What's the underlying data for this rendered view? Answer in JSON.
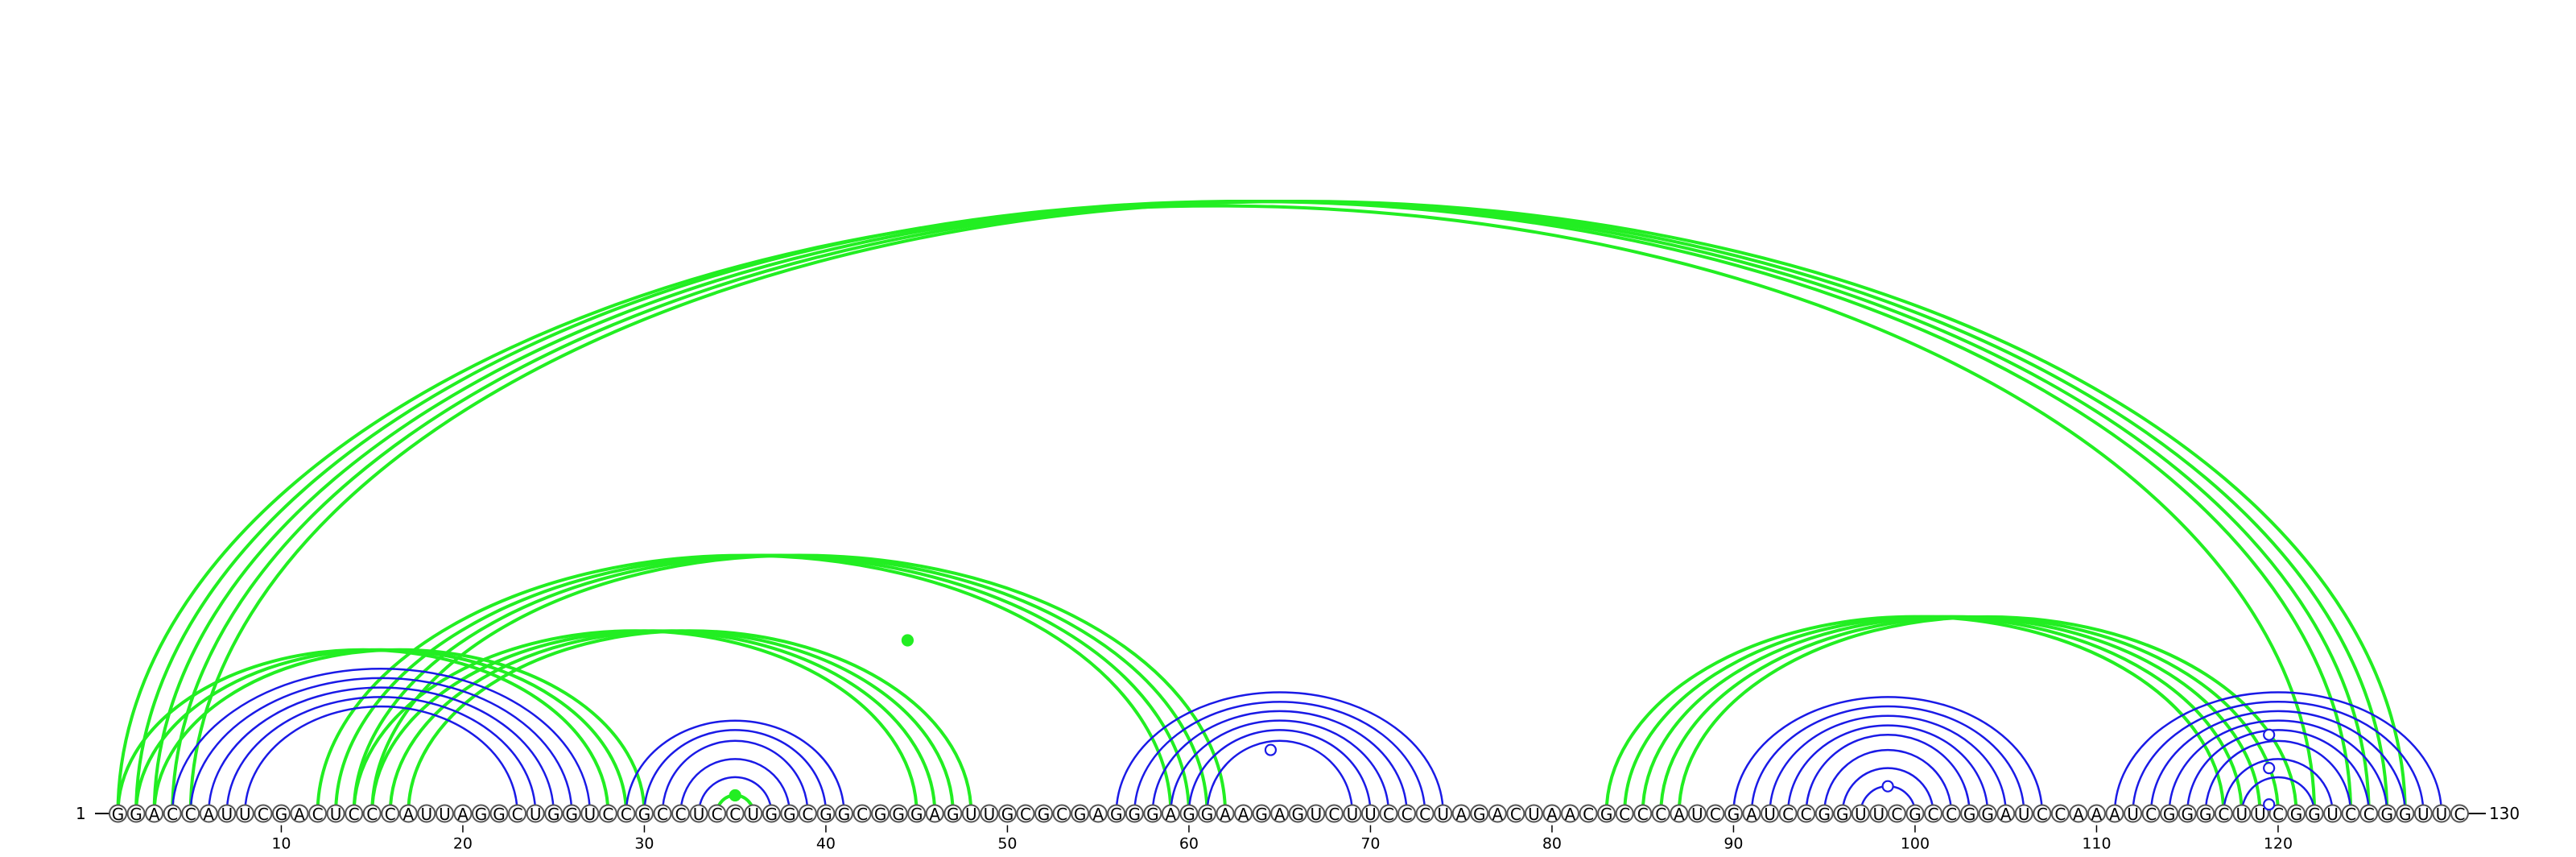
{
  "sequence": "GGACCAUUCGACUCCCAUUAGGCUGGUCCGCCUCCUGGCGGCGGGAGUUGCGCGAGGGAGGAAGAGUCUUCCCUAGACUAACGCCCAUCGAUCCGGUUCGCCGGAUCCAAAUCGGGCUUCGGUCCGGUUC",
  "start_label": "1",
  "end_label": "130",
  "tick_labels": [
    "10",
    "20",
    "30",
    "40",
    "50",
    "60",
    "70",
    "80",
    "90",
    "100",
    "110",
    "120"
  ],
  "colors": {
    "green": "#22ee22",
    "blue": "#1a1ae6",
    "outline": "#555555"
  },
  "arc_groups": [
    {
      "color": "green",
      "pairs": [
        [
          1,
          122
        ],
        [
          2,
          124
        ],
        [
          3,
          125
        ],
        [
          4,
          126
        ],
        [
          5,
          127
        ]
      ]
    },
    {
      "color": "green",
      "pairs": [
        [
          1,
          28
        ],
        [
          2,
          29
        ],
        [
          3,
          30
        ]
      ]
    },
    {
      "color": "green",
      "pairs": [
        [
          12,
          59
        ],
        [
          13,
          60
        ],
        [
          14,
          61
        ],
        [
          15,
          62
        ]
      ]
    },
    {
      "color": "green",
      "pairs": [
        [
          14,
          45
        ],
        [
          15,
          46
        ],
        [
          16,
          47
        ],
        [
          17,
          48
        ]
      ]
    },
    {
      "color": "green",
      "pairs": [
        [
          83,
          117
        ],
        [
          84,
          118
        ],
        [
          85,
          119
        ],
        [
          86,
          120
        ],
        [
          87,
          121
        ]
      ]
    },
    {
      "color": "blue",
      "pairs": [
        [
          4,
          27
        ],
        [
          5,
          26
        ],
        [
          6,
          25
        ],
        [
          7,
          24
        ],
        [
          8,
          23
        ]
      ]
    },
    {
      "color": "blue",
      "pairs": [
        [
          29,
          41
        ],
        [
          30,
          40
        ],
        [
          31,
          39
        ],
        [
          32,
          38
        ],
        [
          33,
          37
        ]
      ]
    },
    {
      "color": "green",
      "pairs": [
        [
          34,
          36
        ]
      ]
    },
    {
      "color": "blue",
      "pairs": [
        [
          56,
          74
        ],
        [
          57,
          73
        ],
        [
          58,
          72
        ],
        [
          59,
          71
        ],
        [
          60,
          70
        ],
        [
          61,
          69
        ]
      ]
    },
    {
      "color": "blue",
      "pairs": [
        [
          90,
          107
        ],
        [
          91,
          106
        ],
        [
          92,
          105
        ],
        [
          93,
          104
        ],
        [
          94,
          103
        ],
        [
          95,
          102
        ],
        [
          96,
          101
        ],
        [
          97,
          100
        ]
      ]
    },
    {
      "color": "blue",
      "pairs": [
        [
          111,
          129
        ],
        [
          112,
          128
        ],
        [
          113,
          127
        ],
        [
          114,
          126
        ],
        [
          115,
          125
        ],
        [
          116,
          124
        ],
        [
          117,
          123
        ],
        [
          118,
          122
        ]
      ]
    }
  ],
  "markers": [
    {
      "i": 30,
      "j": 59,
      "kind": "filled",
      "color": "green"
    },
    {
      "i": 34,
      "j": 36,
      "kind": "filled",
      "color": "green"
    },
    {
      "i": 61,
      "j": 68,
      "kind": "open",
      "color": "blue"
    },
    {
      "i": 97,
      "j": 100,
      "kind": "open",
      "color": "blue"
    },
    {
      "i": 115,
      "j": 124,
      "kind": "open",
      "color": "blue"
    },
    {
      "i": 117,
      "j": 122,
      "kind": "open",
      "color": "blue"
    },
    {
      "i": 119,
      "j": 120,
      "kind": "open",
      "color": "blue"
    }
  ]
}
